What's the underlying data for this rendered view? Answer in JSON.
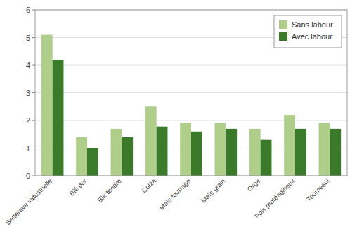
{
  "chart_data": {
    "type": "bar",
    "categories": [
      "Betterave industrielle",
      "Blé dur",
      "Blé tendre",
      "Colza",
      "Maïs fourrage",
      "Maïs grain",
      "Orge",
      "Pois protéagineux",
      "Tournesol"
    ],
    "series": [
      {
        "name": "Sans labour",
        "color": "#aece8a",
        "values": [
          5.1,
          1.4,
          1.7,
          2.5,
          1.9,
          1.9,
          1.7,
          2.2,
          1.9
        ]
      },
      {
        "name": "Avec labour",
        "color": "#3a7a2a",
        "values": [
          4.2,
          1.0,
          1.4,
          1.78,
          1.6,
          1.7,
          1.3,
          1.7,
          1.7
        ]
      }
    ],
    "ylim": [
      0,
      6
    ],
    "yticks": [
      0,
      1,
      2,
      3,
      4,
      5,
      6
    ],
    "grid": true,
    "legend": "upper right"
  }
}
